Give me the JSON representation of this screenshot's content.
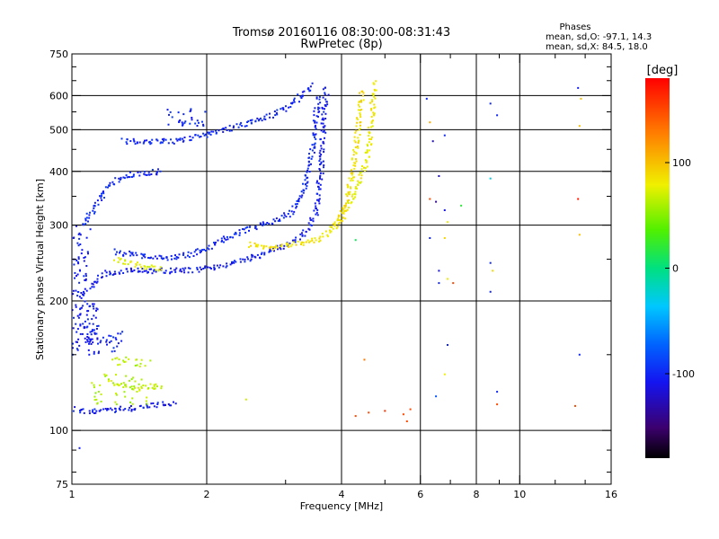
{
  "chart_data": {
    "type": "scatter",
    "title": "Tromsø 20160116 08:30:00-08:31:43",
    "subtitle": "RwPretec (8p)",
    "xlabel": "Frequency [MHz]",
    "ylabel": "Stationary phase Virtual Height [km]",
    "x_scale": "log",
    "y_scale": "log",
    "xlim": [
      1,
      16
    ],
    "ylim": [
      75,
      750
    ],
    "x_ticks": [
      1,
      2,
      4,
      6,
      8,
      10,
      16
    ],
    "y_ticks": [
      75,
      100,
      200,
      300,
      400,
      500,
      600,
      750
    ],
    "x_minor_ticks": [
      3,
      5,
      7,
      9,
      12,
      14
    ],
    "y_minor_ticks": [
      80,
      90,
      150,
      250,
      350,
      450,
      550,
      650,
      700
    ],
    "grid": true,
    "stats": {
      "heading": "Phases",
      "line_o": "mean, sd,O: -97.1, 14.3",
      "line_x": "mean, sd,X:  84.5, 18.0"
    },
    "colorbar": {
      "unit": "[deg]",
      "range": [
        -180,
        180
      ],
      "ticks": [
        100,
        0,
        -100
      ]
    },
    "traces": [
      {
        "x": [
          1.02,
          1.05,
          1.1,
          1.2,
          1.3,
          1.4,
          1.5,
          1.6,
          1.7
        ],
        "y": [
          112,
          111,
          111,
          111,
          112,
          113,
          114,
          115,
          116
        ],
        "phase": -105
      },
      {
        "x": [
          1.0,
          1.05,
          1.1,
          1.15,
          1.2,
          1.3,
          1.5,
          1.8,
          2.0,
          2.3,
          2.6,
          3.0,
          3.3,
          3.5,
          3.6,
          3.65,
          3.7
        ],
        "y": [
          210,
          205,
          215,
          225,
          232,
          235,
          235,
          235,
          238,
          245,
          255,
          268,
          285,
          320,
          400,
          520,
          630
        ],
        "phase": -105
      },
      {
        "x": [
          1.05,
          1.1,
          1.15,
          1.2,
          1.3,
          1.4,
          1.5,
          1.6
        ],
        "y": [
          300,
          320,
          340,
          370,
          390,
          395,
          398,
          400
        ],
        "phase": -100
      },
      {
        "x": [
          1.25,
          1.4,
          1.6,
          1.8,
          2.0,
          2.2,
          2.5,
          2.8,
          3.1,
          3.3,
          3.45,
          3.55
        ],
        "y": [
          260,
          255,
          250,
          255,
          265,
          280,
          295,
          305,
          320,
          360,
          450,
          600
        ],
        "phase": -100
      },
      {
        "x": [
          1.3,
          1.5,
          1.7,
          1.9,
          2.2,
          2.5,
          2.8,
          3.0,
          3.2,
          3.35,
          3.45
        ],
        "y": [
          470,
          468,
          470,
          480,
          500,
          520,
          540,
          560,
          590,
          620,
          640
        ],
        "phase": -100
      },
      {
        "x": [
          2.5,
          2.8,
          3.0,
          3.3,
          3.6,
          3.9,
          4.1,
          4.25,
          4.35,
          4.45
        ],
        "y": [
          270,
          265,
          270,
          272,
          280,
          300,
          340,
          400,
          500,
          620
        ],
        "phase": 85
      },
      {
        "x": [
          3.8,
          4.0,
          4.2,
          4.4,
          4.55,
          4.65,
          4.7,
          4.75
        ],
        "y": [
          295,
          310,
          340,
          380,
          430,
          500,
          580,
          650
        ],
        "phase": 80
      },
      {
        "x": [
          1.25,
          1.35,
          1.45,
          1.55,
          1.6
        ],
        "y": [
          250,
          245,
          240,
          238,
          236
        ],
        "phase": 75
      },
      {
        "x": [
          1.2,
          1.3,
          1.4,
          1.5,
          1.6
        ],
        "y": [
          130,
          127,
          125,
          127,
          126
        ],
        "phase": 65
      }
    ],
    "clusters": [
      {
        "x": [
          1.0,
          1.15
        ],
        "y": [
          150,
          200
        ],
        "count": 90,
        "phase": -105
      },
      {
        "x": [
          1.1,
          1.3
        ],
        "y": [
          150,
          170
        ],
        "count": 25,
        "phase": -100
      },
      {
        "x": [
          1.1,
          1.5
        ],
        "y": [
          115,
          135
        ],
        "count": 40,
        "phase": 60
      },
      {
        "x": [
          1.2,
          1.5
        ],
        "y": [
          140,
          150
        ],
        "count": 20,
        "phase": 65
      },
      {
        "x": [
          1.0,
          1.1
        ],
        "y": [
          220,
          300
        ],
        "count": 40,
        "phase": -105
      },
      {
        "x": [
          1.6,
          2.0
        ],
        "y": [
          510,
          560
        ],
        "count": 30,
        "phase": -100
      }
    ],
    "scatter_points": [
      {
        "x": 1.04,
        "y": 91,
        "phase": -105
      },
      {
        "x": 2.45,
        "y": 118,
        "phase": 70
      },
      {
        "x": 4.3,
        "y": 108,
        "phase": 150
      },
      {
        "x": 4.6,
        "y": 110,
        "phase": 150
      },
      {
        "x": 5.0,
        "y": 111,
        "phase": 160
      },
      {
        "x": 5.5,
        "y": 109,
        "phase": 150
      },
      {
        "x": 5.7,
        "y": 112,
        "phase": 150
      },
      {
        "x": 5.6,
        "y": 105,
        "phase": 150
      },
      {
        "x": 4.5,
        "y": 146,
        "phase": 130
      },
      {
        "x": 4.3,
        "y": 277,
        "phase": 10
      },
      {
        "x": 6.2,
        "y": 590,
        "phase": -100
      },
      {
        "x": 6.3,
        "y": 520,
        "phase": 110
      },
      {
        "x": 6.4,
        "y": 470,
        "phase": -120
      },
      {
        "x": 6.8,
        "y": 485,
        "phase": -100
      },
      {
        "x": 6.3,
        "y": 345,
        "phase": 150
      },
      {
        "x": 6.6,
        "y": 390,
        "phase": -120
      },
      {
        "x": 6.5,
        "y": 340,
        "phase": -140
      },
      {
        "x": 6.8,
        "y": 325,
        "phase": -110
      },
      {
        "x": 6.9,
        "y": 305,
        "phase": 80
      },
      {
        "x": 6.3,
        "y": 280,
        "phase": -100
      },
      {
        "x": 6.8,
        "y": 280,
        "phase": 90
      },
      {
        "x": 6.6,
        "y": 235,
        "phase": -110
      },
      {
        "x": 6.6,
        "y": 220,
        "phase": -100
      },
      {
        "x": 6.9,
        "y": 225,
        "phase": 80
      },
      {
        "x": 7.1,
        "y": 220,
        "phase": 150
      },
      {
        "x": 7.4,
        "y": 333,
        "phase": 20
      },
      {
        "x": 6.9,
        "y": 158,
        "phase": -100
      },
      {
        "x": 6.8,
        "y": 135,
        "phase": 80
      },
      {
        "x": 6.5,
        "y": 120,
        "phase": -80
      },
      {
        "x": 8.6,
        "y": 575,
        "phase": -100
      },
      {
        "x": 8.9,
        "y": 540,
        "phase": -100
      },
      {
        "x": 8.6,
        "y": 385,
        "phase": -30
      },
      {
        "x": 8.6,
        "y": 245,
        "phase": -100
      },
      {
        "x": 8.7,
        "y": 235,
        "phase": 90
      },
      {
        "x": 8.6,
        "y": 210,
        "phase": -100
      },
      {
        "x": 8.9,
        "y": 123,
        "phase": -100
      },
      {
        "x": 8.9,
        "y": 115,
        "phase": 150
      },
      {
        "x": 13.5,
        "y": 625,
        "phase": -105
      },
      {
        "x": 13.7,
        "y": 590,
        "phase": 100
      },
      {
        "x": 13.6,
        "y": 510,
        "phase": 100
      },
      {
        "x": 13.5,
        "y": 345,
        "phase": 170
      },
      {
        "x": 13.6,
        "y": 285,
        "phase": 100
      },
      {
        "x": 13.6,
        "y": 150,
        "phase": -100
      },
      {
        "x": 13.3,
        "y": 114,
        "phase": 150
      }
    ]
  }
}
